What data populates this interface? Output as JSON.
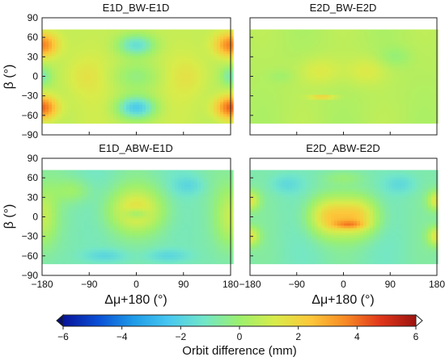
{
  "chart_data": {
    "type": "heatmap",
    "colorbar": {
      "label": "Orbit difference (mm)",
      "range": [
        -6,
        6
      ],
      "ticks": [
        -6,
        -4,
        -2,
        0,
        2,
        4,
        6
      ],
      "tick_labels": [
        "−6",
        "−4",
        "−2",
        "0",
        "2",
        "4",
        "6"
      ],
      "extend": "both",
      "colors": [
        "#08149a",
        "#0a4fd6",
        "#1e9be8",
        "#48c8f0",
        "#72e6c8",
        "#9cf06e",
        "#d8ec4a",
        "#fcc83a",
        "#f88a24",
        "#e0361a",
        "#9c1410"
      ]
    },
    "xlabel": "Δμ+180 (°)",
    "ylabel": "β (°)",
    "xlim": [
      -180,
      180
    ],
    "ylim": [
      -90,
      90
    ],
    "xticks": [
      -180,
      -90,
      0,
      90,
      180
    ],
    "xtick_labels": [
      "−180",
      "−90",
      "0",
      "90",
      "180"
    ],
    "yticks": [
      -90,
      -60,
      -30,
      0,
      30,
      60,
      90
    ],
    "ytick_labels": [
      "−90",
      "−60",
      "−30",
      "0",
      "30",
      "60",
      "90"
    ],
    "data_beta_range": [
      -72,
      72
    ],
    "panels": [
      {
        "title": "E1D_BW-E1D",
        "baseline": 0.8,
        "features": [
          {
            "mu": -180,
            "beta": 48,
            "value": 3.0,
            "mu_width": 30,
            "beta_width": 18
          },
          {
            "mu": 180,
            "beta": 48,
            "value": 3.0,
            "mu_width": 30,
            "beta_width": 18
          },
          {
            "mu": -180,
            "beta": -48,
            "value": 3.5,
            "mu_width": 30,
            "beta_width": 18
          },
          {
            "mu": 180,
            "beta": -48,
            "value": 3.5,
            "mu_width": 30,
            "beta_width": 18
          },
          {
            "mu": 0,
            "beta": 48,
            "value": -2.2,
            "mu_width": 35,
            "beta_width": 16
          },
          {
            "mu": 0,
            "beta": -48,
            "value": -2.8,
            "mu_width": 35,
            "beta_width": 16
          },
          {
            "mu": 0,
            "beta": 0,
            "value": -0.8,
            "mu_width": 45,
            "beta_width": 20
          },
          {
            "mu": -180,
            "beta": 0,
            "value": -1.5,
            "mu_width": 18,
            "beta_width": 15
          },
          {
            "mu": 180,
            "beta": 0,
            "value": -1.5,
            "mu_width": 18,
            "beta_width": 15
          },
          {
            "mu": -100,
            "beta": 0,
            "value": 0.6,
            "mu_width": 40,
            "beta_width": 30
          },
          {
            "mu": 100,
            "beta": 0,
            "value": 0.6,
            "mu_width": 40,
            "beta_width": 30
          }
        ]
      },
      {
        "title": "E2D_BW-E2D",
        "baseline": 0.5,
        "features": [
          {
            "mu": -45,
            "beta": 8,
            "value": 0.8,
            "mu_width": 40,
            "beta_width": 22
          },
          {
            "mu": 45,
            "beta": 8,
            "value": 0.8,
            "mu_width": 40,
            "beta_width": 22
          },
          {
            "mu": -40,
            "beta": -32,
            "value": 1.8,
            "mu_width": 25,
            "beta_width": 3
          },
          {
            "mu": 100,
            "beta": 30,
            "value": -0.6,
            "mu_width": 30,
            "beta_width": 15
          },
          {
            "mu": -120,
            "beta": 0,
            "value": -0.4,
            "mu_width": 25,
            "beta_width": 10
          }
        ]
      },
      {
        "title": "E1D_ABW-E1D",
        "baseline": -0.9,
        "features": [
          {
            "mu": 0,
            "beta": 10,
            "value": 2.4,
            "mu_width": 55,
            "beta_width": 34
          },
          {
            "mu": 0,
            "beta": 5,
            "value": -1.4,
            "mu_width": 22,
            "beta_width": 8
          },
          {
            "mu": -180,
            "beta": 0,
            "value": 1.6,
            "mu_width": 28,
            "beta_width": 45
          },
          {
            "mu": 180,
            "beta": 0,
            "value": 1.6,
            "mu_width": 28,
            "beta_width": 45
          },
          {
            "mu": -60,
            "beta": -60,
            "value": -0.9,
            "mu_width": 40,
            "beta_width": 10
          },
          {
            "mu": 60,
            "beta": -60,
            "value": -0.9,
            "mu_width": 40,
            "beta_width": 10
          },
          {
            "mu": 100,
            "beta": 48,
            "value": -0.8,
            "mu_width": 30,
            "beta_width": 14
          },
          {
            "mu": -120,
            "beta": 40,
            "value": 0.9,
            "mu_width": 35,
            "beta_width": 18
          }
        ]
      },
      {
        "title": "E2D_ABW-E2D",
        "baseline": -0.9,
        "features": [
          {
            "mu": -30,
            "beta": 0,
            "value": 2.8,
            "mu_width": 40,
            "beta_width": 30
          },
          {
            "mu": 30,
            "beta": 0,
            "value": 2.8,
            "mu_width": 40,
            "beta_width": 30
          },
          {
            "mu": 10,
            "beta": -12,
            "value": 1.8,
            "mu_width": 30,
            "beta_width": 6
          },
          {
            "mu": -180,
            "beta": 25,
            "value": 2.2,
            "mu_width": 18,
            "beta_width": 15
          },
          {
            "mu": 180,
            "beta": 25,
            "value": 2.2,
            "mu_width": 18,
            "beta_width": 15
          },
          {
            "mu": -180,
            "beta": -30,
            "value": 2.2,
            "mu_width": 18,
            "beta_width": 15
          },
          {
            "mu": 180,
            "beta": -30,
            "value": 2.2,
            "mu_width": 18,
            "beta_width": 15
          },
          {
            "mu": -110,
            "beta": 50,
            "value": -0.8,
            "mu_width": 30,
            "beta_width": 14
          },
          {
            "mu": 110,
            "beta": 50,
            "value": -0.8,
            "mu_width": 30,
            "beta_width": 14
          },
          {
            "mu": 0,
            "beta": 60,
            "value": 0.6,
            "mu_width": 40,
            "beta_width": 10
          }
        ]
      }
    ]
  }
}
